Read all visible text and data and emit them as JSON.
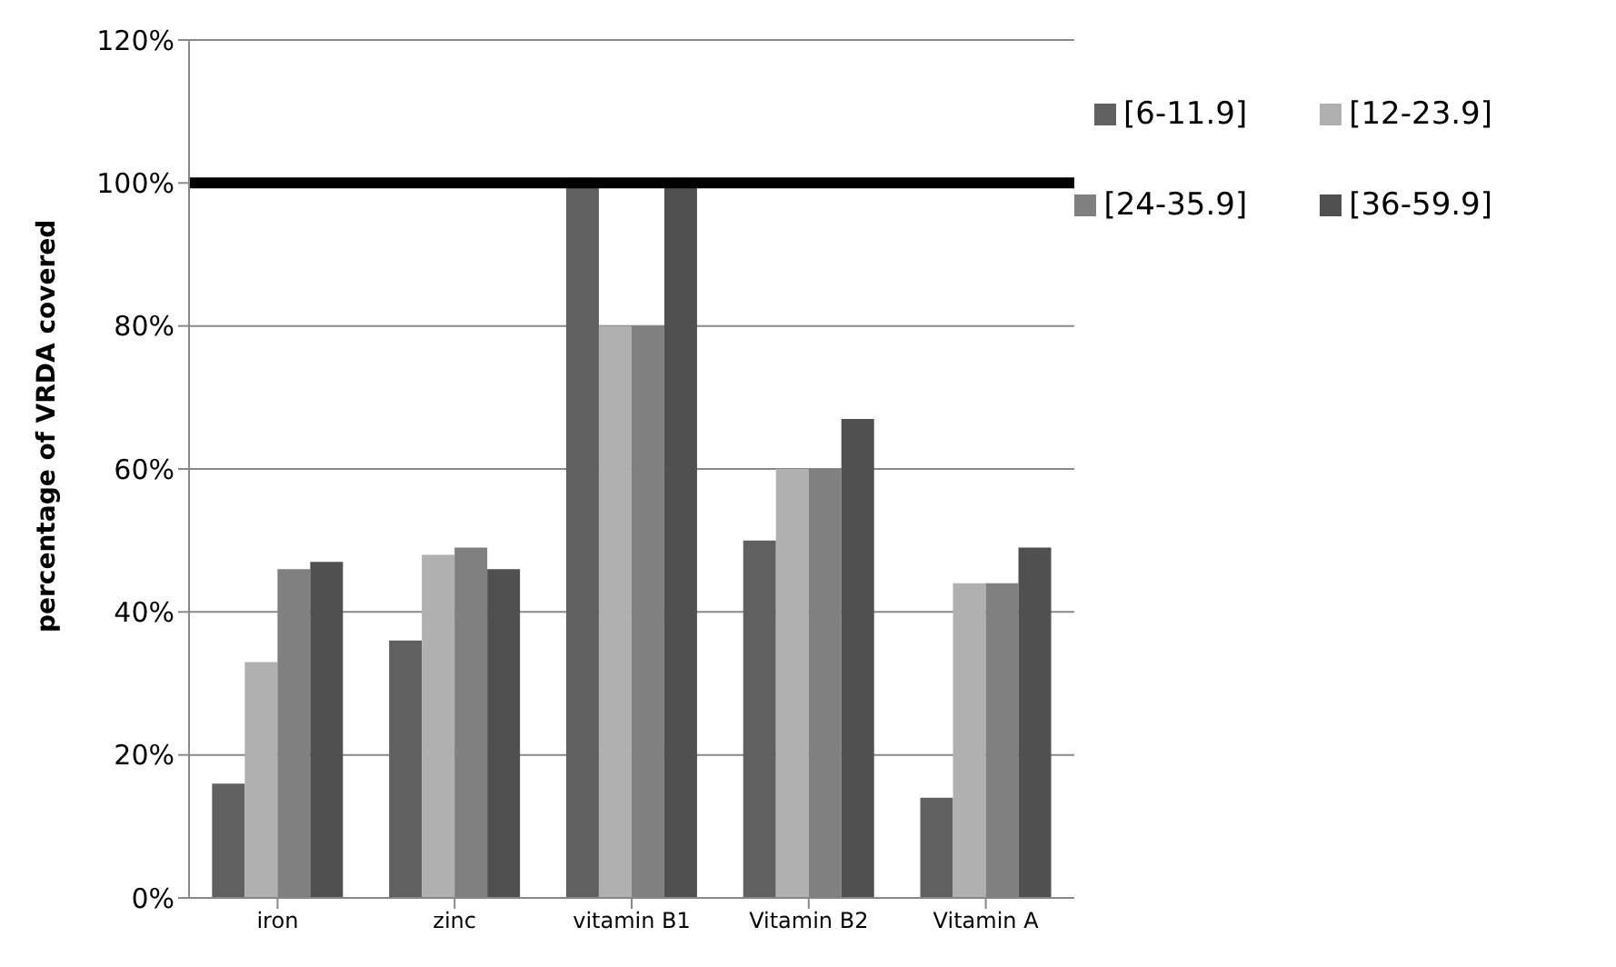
{
  "chart_data": {
    "type": "bar",
    "ylabel": "percentage of VRDA covered",
    "categories": [
      "iron",
      "zinc",
      "vitamin B1",
      "Vitamin B2",
      "Vitamin A"
    ],
    "series": [
      {
        "name": "[6-11.9]",
        "color": "#606060",
        "values": [
          16,
          36,
          100,
          50,
          14
        ]
      },
      {
        "name": "[12-23.9]",
        "color": "#b0b0b0",
        "values": [
          33,
          48,
          80,
          60,
          44
        ]
      },
      {
        "name": "[24-35.9]",
        "color": "#808080",
        "values": [
          46,
          49,
          80,
          60,
          44
        ]
      },
      {
        "name": "[36-59.9]",
        "color": "#505050",
        "values": [
          47,
          46,
          100,
          67,
          49
        ]
      }
    ],
    "ylim": [
      0,
      120
    ],
    "yticks": [
      {
        "value": 0,
        "label": "0%"
      },
      {
        "value": 20,
        "label": "20%"
      },
      {
        "value": 40,
        "label": "40%"
      },
      {
        "value": 60,
        "label": "60%"
      },
      {
        "value": 80,
        "label": "80%"
      },
      {
        "value": 100,
        "label": "100%"
      },
      {
        "value": 120,
        "label": "120%"
      }
    ],
    "ref_lines": [
      {
        "axis": "y",
        "value": 100,
        "color": "#000000",
        "line_style": "solid"
      }
    ],
    "grid": "y",
    "legend": "top right"
  }
}
